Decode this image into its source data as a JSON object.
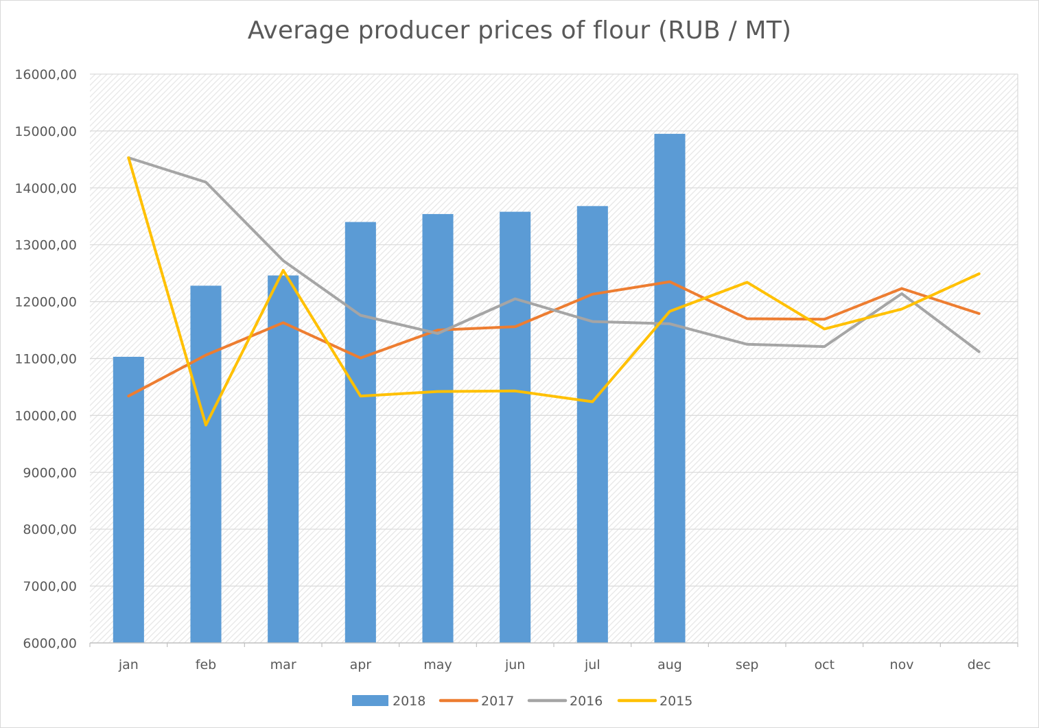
{
  "chart_data": {
    "type": "bar",
    "title": "Average producer prices of flour (RUB / MT)",
    "categories": [
      "jan",
      "feb",
      "mar",
      "apr",
      "may",
      "jun",
      "jul",
      "aug",
      "sep",
      "oct",
      "nov",
      "dec"
    ],
    "ylim": [
      6000,
      16000
    ],
    "yticks": [
      "6000,00",
      "7000,00",
      "8000,00",
      "9000,00",
      "10000,00",
      "11000,00",
      "12000,00",
      "13000,00",
      "14000,00",
      "15000,00",
      "16000,00"
    ],
    "grid": true,
    "legend_position": "bottom",
    "series": [
      {
        "name": "2018",
        "type": "bar",
        "color": "#5b9bd5",
        "values": [
          11030,
          12280,
          12460,
          13400,
          13540,
          13580,
          13680,
          14950,
          null,
          null,
          null,
          null
        ]
      },
      {
        "name": "2017",
        "type": "line",
        "color": "#ed7d31",
        "values": [
          10340,
          11060,
          11630,
          11010,
          11500,
          11560,
          12130,
          12350,
          11700,
          11690,
          12230,
          11790
        ]
      },
      {
        "name": "2016",
        "type": "line",
        "color": "#a5a5a5",
        "values": [
          14530,
          14100,
          12720,
          11760,
          11440,
          12050,
          11650,
          11610,
          11250,
          11210,
          12140,
          11120
        ]
      },
      {
        "name": "2015",
        "type": "line",
        "color": "#ffc000",
        "values": [
          14530,
          9830,
          12550,
          10340,
          10420,
          10430,
          10240,
          11830,
          12340,
          11520,
          11870,
          12490
        ]
      }
    ]
  }
}
